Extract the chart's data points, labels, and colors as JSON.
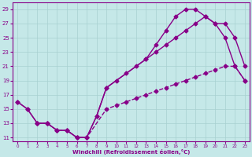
{
  "xlabel": "Windchill (Refroidissement éolien,°C)",
  "bg_color": "#c5e8e8",
  "line_color": "#880088",
  "xlim": [
    -0.5,
    23.5
  ],
  "ylim": [
    10.5,
    30.0
  ],
  "xticks": [
    0,
    1,
    2,
    3,
    4,
    5,
    6,
    7,
    8,
    9,
    10,
    11,
    12,
    13,
    14,
    15,
    16,
    17,
    18,
    19,
    20,
    21,
    22,
    23
  ],
  "yticks": [
    11,
    13,
    15,
    17,
    19,
    21,
    23,
    25,
    27,
    29
  ],
  "grid_color": "#a8d0d0",
  "curve1_x": [
    0,
    1,
    2,
    3,
    4,
    5,
    6,
    7,
    8,
    9,
    13,
    14,
    15,
    16,
    17,
    18,
    19,
    20,
    21,
    22,
    23
  ],
  "curve1_y": [
    16,
    15,
    13,
    13,
    12,
    12,
    11,
    11,
    14,
    18,
    22,
    24,
    26,
    28,
    29,
    29,
    28,
    27,
    25,
    21,
    19
  ],
  "curve2_x": [
    0,
    1,
    2,
    3,
    4,
    5,
    6,
    7,
    8,
    9,
    10,
    11,
    12,
    13,
    14,
    15,
    16,
    17,
    18,
    19,
    20,
    21,
    22,
    23
  ],
  "curve2_y": [
    16,
    15,
    13,
    13,
    12,
    12,
    11,
    11,
    14,
    18,
    19,
    20,
    21,
    22,
    23,
    24,
    25,
    26,
    27,
    28,
    27,
    27,
    25,
    21
  ],
  "curve3_x": [
    2,
    3,
    4,
    5,
    6,
    7,
    9,
    10,
    11,
    12,
    13,
    14,
    15,
    16,
    17,
    18,
    19,
    20,
    21,
    22,
    23
  ],
  "curve3_y": [
    13,
    13,
    12,
    12,
    11,
    11,
    15,
    15.5,
    16,
    16.5,
    17,
    17.5,
    18,
    18.5,
    19,
    19.5,
    20,
    20.5,
    21,
    21,
    19
  ],
  "markersize": 2.5,
  "linewidth": 1.0
}
